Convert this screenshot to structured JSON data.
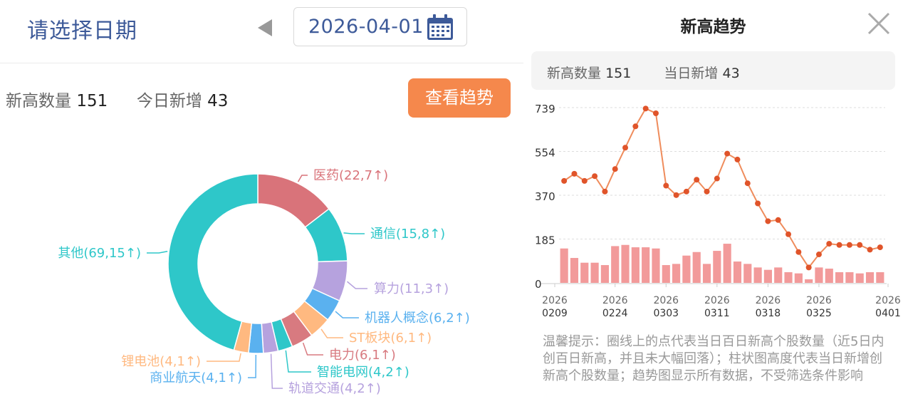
{
  "header": {
    "title": "请选择日期",
    "date": "2026-04-01"
  },
  "summary": {
    "new_high_label": "新高数量",
    "new_high_value": "151",
    "today_new_label": "今日新增",
    "today_new_value": "43",
    "trend_button": "查看趋势"
  },
  "donut": {
    "slices": [
      {
        "label": "医药(22,7↑)",
        "value": 22,
        "color": "#d9737a"
      },
      {
        "label": "通信(15,8↑)",
        "value": 15,
        "color": "#2ec7c9"
      },
      {
        "label": "算力(11,3↑)",
        "value": 11,
        "color": "#b6a2de"
      },
      {
        "label": "机器人概念(6,2↑)",
        "value": 6,
        "color": "#5ab1ef"
      },
      {
        "label": "ST板块(6,1↑)",
        "value": 6,
        "color": "#ffb980"
      },
      {
        "label": "电力(6,1↑)",
        "value": 6,
        "color": "#d87a80"
      },
      {
        "label": "智能电网(4,2↑)",
        "value": 4,
        "color": "#2ec7c9"
      },
      {
        "label": "轨道交通(4,2↑)",
        "value": 4,
        "color": "#b6a2de"
      },
      {
        "label": "商业航天(4,1↑)",
        "value": 4,
        "color": "#5ab1ef"
      },
      {
        "label": "锂电池(4,1↑)",
        "value": 4,
        "color": "#ffb980"
      },
      {
        "label": "其他(69,15↑)",
        "value": 69,
        "color": "#2ec7c9"
      }
    ]
  },
  "trend_modal": {
    "title": "新高趋势",
    "close_icon": "close-icon",
    "new_high_label": "新高数量",
    "new_high_value": "151",
    "today_new_label": "当日新增",
    "today_new_value": "43",
    "tip": "温馨提示：圈线上的点代表当日百日新高个股数量（近5日内创百日新高，并且未大幅回落）；柱状图高度代表当日新增创新高个股数量；趋势图显示所有数据，不受筛选条件影响"
  },
  "chart_data": {
    "type": "line",
    "y_ticks": [
      "739",
      "554",
      "370",
      "185",
      "0"
    ],
    "ylim": [
      0,
      739
    ],
    "x_tick_labels": [
      [
        "2026",
        "0209"
      ],
      [
        "2026",
        "0224"
      ],
      [
        "2026",
        "0303"
      ],
      [
        "2026",
        "0311"
      ],
      [
        "2026",
        "0318"
      ],
      [
        "2026",
        "0325"
      ],
      [
        "2026",
        "0401"
      ]
    ],
    "line_color": "#ef8c5c",
    "point_color": "#e0542a",
    "bar_color": "#f29a9a",
    "series": [
      {
        "values": [
          430,
          460,
          430,
          450,
          385,
          480,
          570,
          660,
          735,
          715,
          410,
          370,
          385,
          435,
          385,
          440,
          545,
          520,
          420,
          335,
          260,
          265,
          205,
          130,
          65,
          120,
          165,
          160,
          160,
          160,
          140,
          150
        ]
      },
      {
        "values": [
          145,
          105,
          85,
          85,
          75,
          155,
          160,
          150,
          150,
          145,
          75,
          80,
          115,
          130,
          80,
          135,
          165,
          90,
          80,
          65,
          55,
          65,
          45,
          40,
          15,
          65,
          60,
          45,
          45,
          40,
          45,
          45
        ]
      }
    ]
  }
}
